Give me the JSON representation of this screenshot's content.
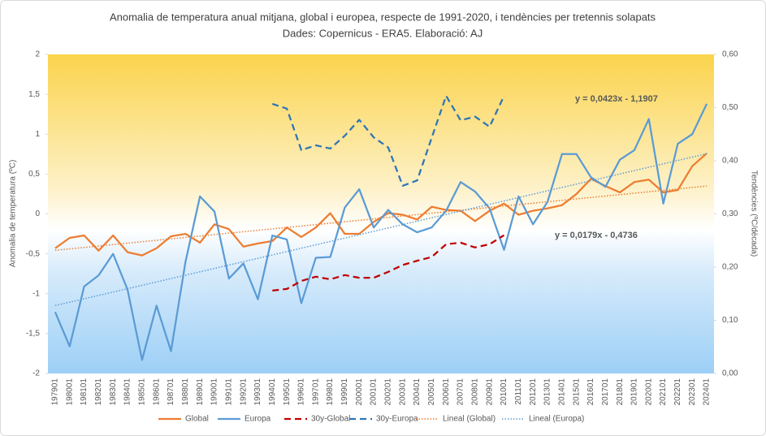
{
  "chart_data": {
    "type": "line",
    "title": "Anomalia de temperatura anual mitjana, global i europea, respecte de 1991-2020, i tendències per tretennis solapats",
    "subtitle": "Dades: Copernicus - ERA5. Elaboració: AJ",
    "y_label": "Anomalia de temperatura (ºC)",
    "y2_label": "Tendències (ºC/dècada)",
    "categories": [
      "197901",
      "198001",
      "198101",
      "198201",
      "198301",
      "198401",
      "198501",
      "198601",
      "198701",
      "198801",
      "198901",
      "199001",
      "199101",
      "199201",
      "199301",
      "199401",
      "199501",
      "199601",
      "199701",
      "199801",
      "199901",
      "200001",
      "200101",
      "200201",
      "200301",
      "200401",
      "200501",
      "200601",
      "200701",
      "200801",
      "200901",
      "201001",
      "201101",
      "201201",
      "201301",
      "201401",
      "201501",
      "201601",
      "201701",
      "201801",
      "201901",
      "202001",
      "202101",
      "202201",
      "202301",
      "202401"
    ],
    "ylim": [
      -2,
      2
    ],
    "yticks": [
      -2,
      {
        "value": -1.5,
        "label": "-1,5"
      },
      -1,
      {
        "value": -0.5,
        "label": "-0,5"
      },
      0,
      {
        "value": 0.5,
        "label": "0,5"
      },
      1,
      {
        "value": 1.5,
        "label": "1,5"
      },
      2
    ],
    "y2lim": [
      0,
      0.6
    ],
    "y2ticks": [
      {
        "value": 0,
        "label": "0,00"
      },
      {
        "value": 0.1,
        "label": "0,10"
      },
      {
        "value": 0.2,
        "label": "0,20"
      },
      {
        "value": 0.3,
        "label": "0,30"
      },
      {
        "value": 0.4,
        "label": "0,40"
      },
      {
        "value": 0.5,
        "label": "0,50"
      },
      {
        "value": 0.6,
        "label": "0,60"
      }
    ],
    "grid": false,
    "legend": "bottom",
    "series": [
      {
        "name": "Global",
        "color": "#ed7d31",
        "style": "solid",
        "values": [
          -0.43,
          -0.3,
          -0.27,
          -0.46,
          -0.27,
          -0.48,
          -0.52,
          -0.43,
          -0.28,
          -0.25,
          -0.36,
          -0.13,
          -0.19,
          -0.41,
          -0.37,
          -0.34,
          -0.17,
          -0.29,
          -0.17,
          0.01,
          -0.25,
          -0.25,
          -0.1,
          0.01,
          -0.01,
          -0.07,
          0.09,
          0.05,
          0.04,
          -0.09,
          0.04,
          0.13,
          -0.01,
          0.04,
          0.07,
          0.11,
          0.25,
          0.44,
          0.35,
          0.27,
          0.4,
          0.43,
          0.27,
          0.3,
          0.6,
          0.76
        ]
      },
      {
        "name": "Europa",
        "color": "#5b9bd5",
        "style": "solid",
        "values": [
          -1.23,
          -1.66,
          -0.91,
          -0.77,
          -0.5,
          -0.95,
          -1.83,
          -1.15,
          -1.72,
          -0.6,
          0.22,
          0.03,
          -0.81,
          -0.62,
          -1.07,
          -0.27,
          -0.32,
          -1.12,
          -0.55,
          -0.54,
          0.08,
          0.31,
          -0.17,
          0.05,
          -0.13,
          -0.23,
          -0.17,
          0.04,
          0.4,
          0.28,
          0.07,
          -0.45,
          0.22,
          -0.13,
          0.15,
          0.75,
          0.75,
          0.46,
          0.34,
          0.68,
          0.8,
          1.19,
          0.13,
          0.88,
          1.0,
          1.38
        ]
      },
      {
        "name": "30y-Global",
        "color": "#c00000",
        "style": "dashed",
        "axis": "y2",
        "values": [
          null,
          null,
          null,
          null,
          null,
          null,
          null,
          null,
          null,
          null,
          null,
          null,
          null,
          null,
          null,
          0.156,
          0.159,
          0.174,
          0.182,
          0.177,
          0.185,
          0.18,
          0.18,
          0.191,
          0.204,
          0.212,
          0.219,
          0.243,
          0.246,
          0.237,
          0.243,
          0.26,
          null,
          null,
          null,
          null,
          null,
          null,
          null,
          null,
          null,
          null,
          null,
          null,
          null,
          null
        ]
      },
      {
        "name": "30y-Europa",
        "color": "#2e75b6",
        "style": "dashed",
        "axis": "y2",
        "values": [
          null,
          null,
          null,
          null,
          null,
          null,
          null,
          null,
          null,
          null,
          null,
          null,
          null,
          null,
          null,
          0.507,
          0.498,
          0.42,
          0.429,
          0.423,
          0.447,
          0.477,
          0.444,
          0.425,
          0.353,
          0.363,
          0.443,
          0.522,
          0.476,
          0.483,
          0.464,
          0.522,
          null,
          null,
          null,
          null,
          null,
          null,
          null,
          null,
          null,
          null,
          null,
          null,
          null,
          null
        ]
      },
      {
        "name": "Lineal  (Global)",
        "color": "#ed7d31",
        "style": "dotted",
        "values": [
          -0.4557,
          -0.4378,
          -0.4199,
          -0.402,
          -0.3841,
          -0.3662,
          -0.3483,
          -0.3304,
          -0.3125,
          -0.2946,
          -0.2767,
          -0.2588,
          -0.2409,
          -0.223,
          -0.2051,
          -0.1872,
          -0.1693,
          -0.1514,
          -0.1335,
          -0.1156,
          -0.0977,
          -0.0798,
          -0.0619,
          -0.044,
          -0.0261,
          -0.0082,
          0.0097,
          0.0276,
          0.0455,
          0.0634,
          0.0813,
          0.0992,
          0.1171,
          0.135,
          0.1529,
          0.1708,
          0.1887,
          0.2066,
          0.2245,
          0.2424,
          0.2603,
          0.2782,
          0.2961,
          0.314,
          0.3319,
          0.3498
        ]
      },
      {
        "name": "Lineal  (Europa)",
        "color": "#5b9bd5",
        "style": "dotted",
        "values": [
          -1.1484,
          -1.1061,
          -1.0638,
          -1.0215,
          -0.9792,
          -0.9369,
          -0.8946,
          -0.8523,
          -0.81,
          -0.7677,
          -0.7254,
          -0.6831,
          -0.6408,
          -0.5985,
          -0.5562,
          -0.5139,
          -0.4716,
          -0.4293,
          -0.387,
          -0.3447,
          -0.3024,
          -0.2601,
          -0.2178,
          -0.1755,
          -0.1332,
          -0.0909,
          -0.0486,
          -0.0063,
          0.036,
          0.0783,
          0.1206,
          0.1629,
          0.2052,
          0.2475,
          0.2898,
          0.3321,
          0.3744,
          0.4167,
          0.459,
          0.5013,
          0.5436,
          0.5859,
          0.6282,
          0.6705,
          0.7128,
          0.7551
        ]
      }
    ],
    "annotations": [
      {
        "text": "y = 0,0423x - 1,1907",
        "color": "#5b9bd5"
      },
      {
        "text": "y = 0,0179x - 0,4736",
        "color": "#e0202a"
      }
    ]
  }
}
